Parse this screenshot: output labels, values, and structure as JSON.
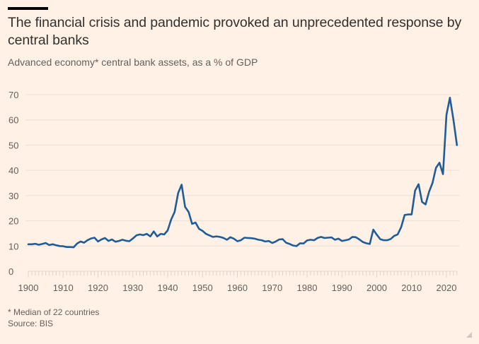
{
  "header": {
    "title": "The financial crisis and pandemic provoked an unprecedented response by central banks",
    "subtitle": "Advanced economy* central bank assets, as a % of GDP"
  },
  "footer": {
    "note": "* Median of 22 countries",
    "source": "Source: BIS"
  },
  "colors": {
    "background": "#fff1e5",
    "line": "#1f5c99",
    "grid": "#ebe0d6",
    "text": "#66605c"
  },
  "chart_data": {
    "type": "line",
    "title": "The financial crisis and pandemic provoked an unprecedented response by central banks",
    "subtitle": "Advanced economy* central bank assets, as a % of GDP",
    "xlabel": "",
    "ylabel": "",
    "xlim": [
      1900,
      2023
    ],
    "ylim": [
      0,
      70
    ],
    "yticks": [
      0,
      10,
      20,
      30,
      40,
      50,
      60,
      70
    ],
    "xticks": [
      1900,
      1910,
      1920,
      1930,
      1940,
      1950,
      1960,
      1970,
      1980,
      1990,
      2000,
      2010,
      2020
    ],
    "grid": "horizontal",
    "legend": "none",
    "series": [
      {
        "name": "Central bank assets (% of GDP)",
        "x": [
          1900,
          1901,
          1902,
          1903,
          1904,
          1905,
          1906,
          1907,
          1908,
          1909,
          1910,
          1911,
          1912,
          1913,
          1914,
          1915,
          1916,
          1917,
          1918,
          1919,
          1920,
          1921,
          1922,
          1923,
          1924,
          1925,
          1926,
          1927,
          1928,
          1929,
          1930,
          1931,
          1932,
          1933,
          1934,
          1935,
          1936,
          1937,
          1938,
          1939,
          1940,
          1941,
          1942,
          1943,
          1944,
          1945,
          1946,
          1947,
          1948,
          1949,
          1950,
          1951,
          1952,
          1953,
          1954,
          1955,
          1956,
          1957,
          1958,
          1959,
          1960,
          1961,
          1962,
          1963,
          1964,
          1965,
          1966,
          1967,
          1968,
          1969,
          1970,
          1971,
          1972,
          1973,
          1974,
          1975,
          1976,
          1977,
          1978,
          1979,
          1980,
          1981,
          1982,
          1983,
          1984,
          1985,
          1986,
          1987,
          1988,
          1989,
          1990,
          1991,
          1992,
          1993,
          1994,
          1995,
          1996,
          1997,
          1998,
          1999,
          2000,
          2001,
          2002,
          2003,
          2004,
          2005,
          2006,
          2007,
          2008,
          2009,
          2010,
          2011,
          2012,
          2013,
          2014,
          2015,
          2016,
          2017,
          2018,
          2019,
          2020,
          2021,
          2022,
          2023
        ],
        "values": [
          10.7,
          10.7,
          10.9,
          10.5,
          10.8,
          11.2,
          10.4,
          10.7,
          10.3,
          10.0,
          9.9,
          9.6,
          9.6,
          9.5,
          11.0,
          11.8,
          11.3,
          12.3,
          13.0,
          13.3,
          11.8,
          12.6,
          13.2,
          12.0,
          12.6,
          11.7,
          12.0,
          12.5,
          12.1,
          11.9,
          13.0,
          14.2,
          14.6,
          14.3,
          14.8,
          13.8,
          15.8,
          13.8,
          14.8,
          14.6,
          16.2,
          20.5,
          23.5,
          31.0,
          34.3,
          25.5,
          23.5,
          18.8,
          19.3,
          16.8,
          16.0,
          14.8,
          14.2,
          13.6,
          13.8,
          13.6,
          13.2,
          12.5,
          13.5,
          12.9,
          11.9,
          12.3,
          13.3,
          13.2,
          13.1,
          12.9,
          12.5,
          12.3,
          11.8,
          12.0,
          11.2,
          11.8,
          12.6,
          12.7,
          11.3,
          10.8,
          10.2,
          10.0,
          11.1,
          11.0,
          12.2,
          12.5,
          12.3,
          13.2,
          13.6,
          13.2,
          13.3,
          13.4,
          12.5,
          12.9,
          12.0,
          12.3,
          12.6,
          13.6,
          13.5,
          12.6,
          11.6,
          11.1,
          10.8,
          16.5,
          14.5,
          12.7,
          12.3,
          12.3,
          12.8,
          14.0,
          14.6,
          17.5,
          22.3,
          22.5,
          22.5,
          32.0,
          34.5,
          27.5,
          26.5,
          31.5,
          35.0,
          41.0,
          43.0,
          38.5,
          62.0,
          68.8,
          60.0,
          50.0
        ]
      }
    ]
  }
}
